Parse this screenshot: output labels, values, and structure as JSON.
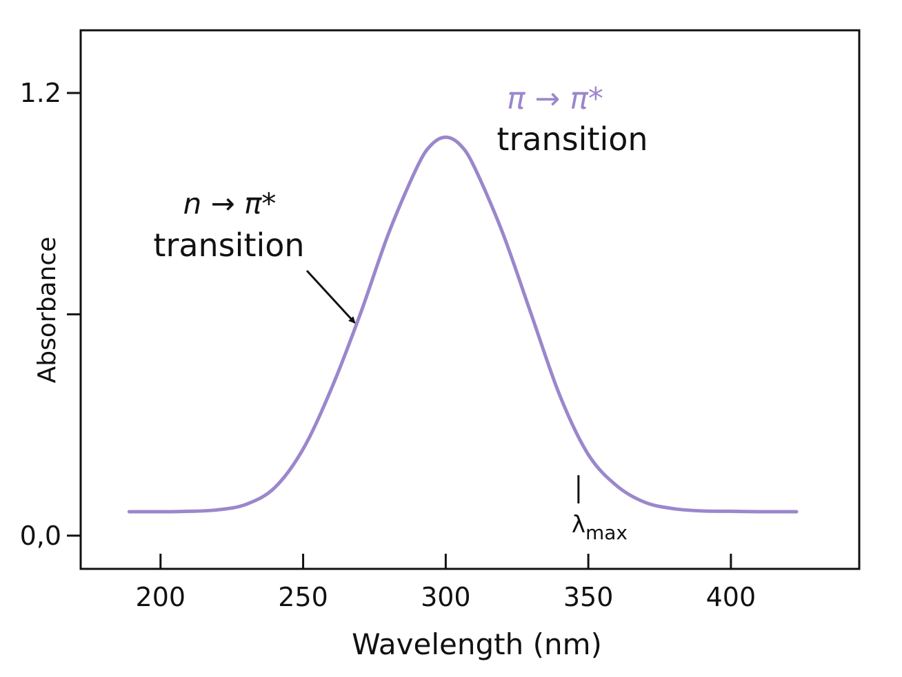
{
  "colors": {
    "curve": "#9b87cc",
    "axis": "#111111",
    "text": "#111111",
    "pi_label": "#9b87cc"
  },
  "chart_data": {
    "type": "line",
    "xlabel": "Wavelength (nm)",
    "ylabel": "Absorbance",
    "xlim": [
      172,
      445
    ],
    "ylim": [
      -0.09,
      1.37
    ],
    "x_ticks": [
      200,
      250,
      300,
      350,
      400
    ],
    "x_tick_labels": [
      "200",
      "250",
      "300",
      "350",
      "400"
    ],
    "y_ticks": [
      0.0,
      0.6,
      1.2
    ],
    "y_tick_labels": [
      "0,0",
      "",
      "1.2"
    ],
    "grid": false,
    "legend": "none",
    "series": [
      {
        "x": [
          189,
          200,
          210,
          220,
          230,
          240,
          250,
          260,
          270,
          280,
          290,
          295,
          300,
          305,
          310,
          320,
          330,
          340,
          350,
          360,
          370,
          380,
          390,
          400,
          410,
          423
        ],
        "y": [
          0.065,
          0.065,
          0.066,
          0.07,
          0.085,
          0.13,
          0.235,
          0.4,
          0.6,
          0.82,
          1.0,
          1.06,
          1.08,
          1.06,
          1.0,
          0.82,
          0.6,
          0.38,
          0.22,
          0.135,
          0.09,
          0.073,
          0.067,
          0.066,
          0.065,
          0.065
        ]
      }
    ],
    "annotations": {
      "pi_pi": {
        "symbol": "π → π*",
        "text": "transition"
      },
      "n_pi": {
        "symbol": "n → π*",
        "text": "transition",
        "arrow_to": {
          "x": 269,
          "y": 0.6
        }
      },
      "lambda_max": {
        "x": 348,
        "text": "λ",
        "subscript": "max"
      }
    }
  }
}
